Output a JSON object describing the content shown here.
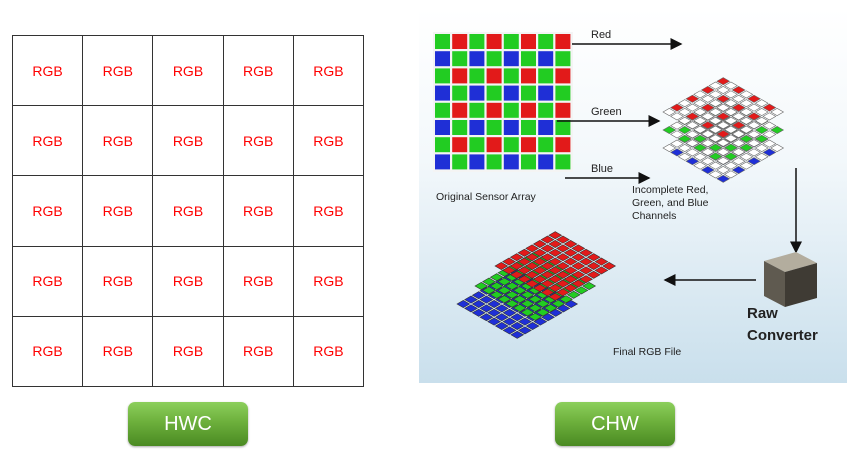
{
  "hwc": {
    "rows": 5,
    "cols": 5,
    "cell_label": "RGB",
    "cell_color": "#ff0000",
    "caption": "HWC"
  },
  "chw": {
    "caption": "CHW",
    "labels": {
      "red": "Red",
      "green": "Green",
      "blue": "Blue",
      "original": "Original Sensor Array",
      "incomplete_1": "Incomplete Red,",
      "incomplete_2": "Green, and Blue",
      "incomplete_3": "Channels",
      "raw_1": "Raw",
      "raw_2": "Converter",
      "final": "Final RGB File"
    },
    "colors": {
      "red": "#e21a1a",
      "green": "#22cc22",
      "blue": "#1f2fd6"
    }
  },
  "badge_color": "#6db03c"
}
